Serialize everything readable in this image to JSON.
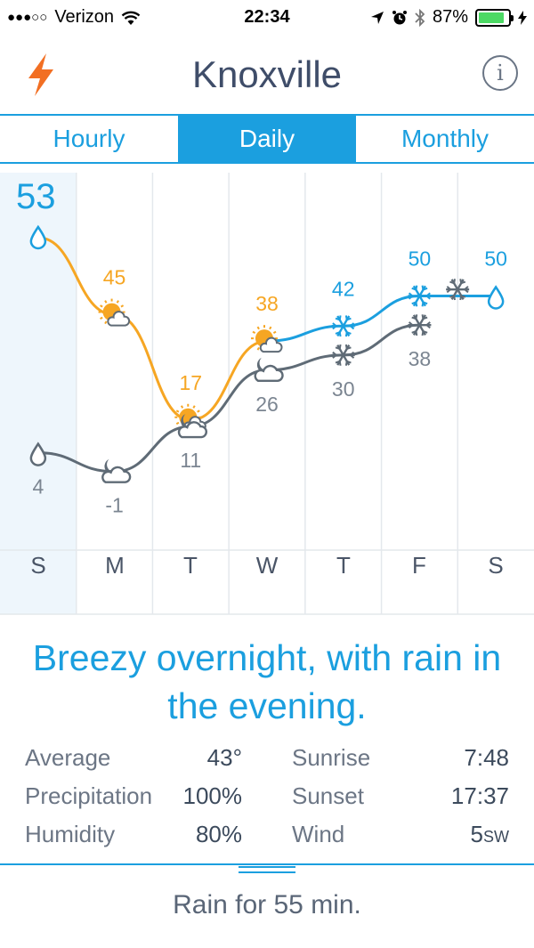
{
  "status_bar": {
    "signal": "●●●○○",
    "carrier": "Verizon",
    "time": "22:34",
    "battery_percent": "87%",
    "battery_level": 0.87
  },
  "header": {
    "title": "Knoxville",
    "info_label": "i"
  },
  "tabs": [
    {
      "label": "Hourly",
      "active": false
    },
    {
      "label": "Daily",
      "active": true
    },
    {
      "label": "Monthly",
      "active": false
    }
  ],
  "colors": {
    "accent": "#1b9fdf",
    "high_line": "#1b9fdf",
    "mid_line": "#f6a623",
    "low_line": "#5f6b76",
    "selected_column": "#eef6fc",
    "bolt": "#f26f23"
  },
  "chart_data": {
    "type": "line",
    "categories": [
      "S",
      "M",
      "T",
      "W",
      "T",
      "F",
      "S"
    ],
    "current_temperature": "53",
    "series": [
      {
        "role": "high",
        "values": [
          null,
          45,
          17,
          38,
          42,
          50,
          50
        ],
        "colors": [
          null,
          "#f6a623",
          "#f6a623",
          "#f6a623",
          "#1b9fdf",
          "#1b9fdf",
          "#1b9fdf"
        ],
        "icons": [
          "rain-icon",
          "partly-sunny-icon",
          "partly-sunny-icon",
          "partly-sunny-icon",
          "snow-icon",
          "snow-icon",
          "rain-icon"
        ]
      },
      {
        "role": "low",
        "values": [
          4,
          -1,
          11,
          26,
          30,
          38,
          null
        ],
        "icons": [
          "rain-icon",
          "night-cloud-icon",
          "night-cloud-icon",
          "night-cloud-icon",
          "snow-icon",
          "snow-icon",
          null
        ]
      }
    ],
    "grid": true
  },
  "summary": "Breezy overnight, with rain in the evening.",
  "stats": {
    "left": [
      {
        "label": "Average",
        "value": "43°"
      },
      {
        "label": "Precipitation",
        "value": "100%"
      },
      {
        "label": "Humidity",
        "value": "80%"
      }
    ],
    "right": [
      {
        "label": "Sunrise",
        "value": "7:48"
      },
      {
        "label": "Sunset",
        "value": "17:37"
      },
      {
        "label": "Wind",
        "value": "5",
        "unit": "SW"
      }
    ]
  },
  "footer": "Rain for 55 min."
}
